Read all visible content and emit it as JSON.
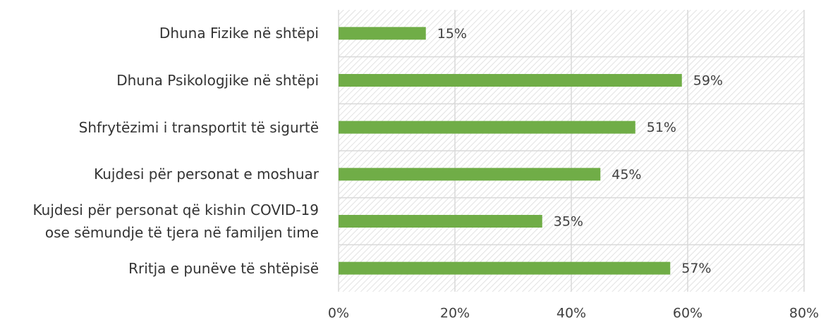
{
  "chart_data": {
    "type": "bar",
    "orientation": "horizontal",
    "categories": [
      "Dhuna Fizike në shtëpi",
      "Dhuna Psikologjike në shtëpi",
      "Shfrytëzimi i transportit të sigurtë",
      "Kujdesi për personat e moshuar",
      "Kujdesi për personat që kishin COVID-19\nose sëmundje të tjera në familjen time",
      "Rritja e punëve të shtëpisë"
    ],
    "values": [
      15,
      59,
      51,
      45,
      35,
      57
    ],
    "value_labels": [
      "15%",
      "59%",
      "51%",
      "45%",
      "35%",
      "57%"
    ],
    "color": "#70ad47",
    "xlim": [
      0,
      80
    ],
    "xticks": [
      {
        "value": 0,
        "label": "0%"
      },
      {
        "value": 20,
        "label": "20%"
      },
      {
        "value": 40,
        "label": "40%"
      },
      {
        "value": 60,
        "label": "60%"
      },
      {
        "value": 80,
        "label": "80%"
      }
    ],
    "grid": true
  }
}
